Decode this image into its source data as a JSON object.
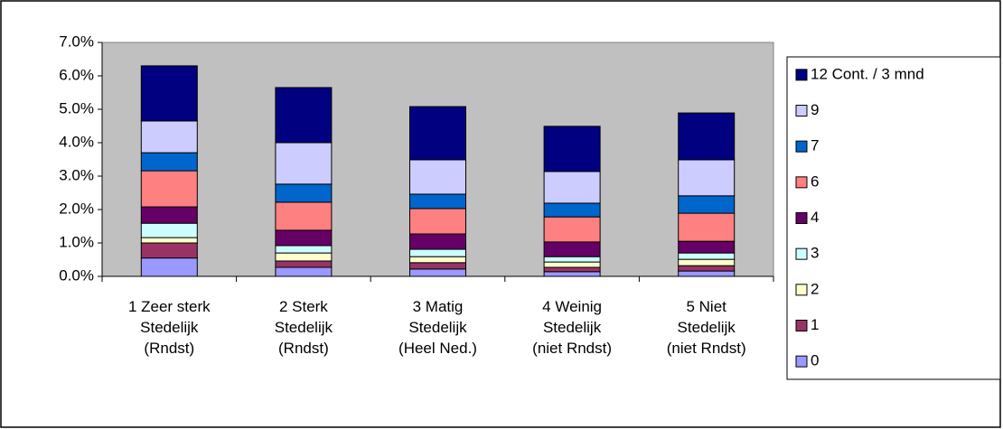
{
  "chart_data": {
    "type": "stacked_bar",
    "categories": [
      "1  Zeer sterk Stedelijk (Rndst)",
      "2  Sterk Stedelijk (Rndst)",
      "3  Matig Stedelijk (Heel Ned.)",
      "4  Weinig Stedelijk (niet Rndst)",
      "5  Niet Stedelijk (niet Rndst)"
    ],
    "series": [
      {
        "name": "0",
        "color": "#9999ff",
        "values": [
          0.55,
          0.27,
          0.22,
          0.14,
          0.16
        ]
      },
      {
        "name": "1",
        "color": "#993366",
        "values": [
          0.45,
          0.19,
          0.19,
          0.13,
          0.16
        ]
      },
      {
        "name": "2",
        "color": "#ffffcc",
        "values": [
          0.16,
          0.24,
          0.18,
          0.16,
          0.19
        ]
      },
      {
        "name": "3",
        "color": "#ccffff",
        "values": [
          0.43,
          0.22,
          0.22,
          0.16,
          0.19
        ]
      },
      {
        "name": "4",
        "color": "#660066",
        "values": [
          0.49,
          0.46,
          0.46,
          0.44,
          0.35
        ]
      },
      {
        "name": "6",
        "color": "#ff8080",
        "values": [
          1.08,
          0.84,
          0.76,
          0.75,
          0.84
        ]
      },
      {
        "name": "7",
        "color": "#0066cc",
        "values": [
          0.54,
          0.54,
          0.43,
          0.41,
          0.52
        ]
      },
      {
        "name": "9",
        "color": "#ccccff",
        "values": [
          0.95,
          1.24,
          1.03,
          0.95,
          1.08
        ]
      },
      {
        "name": "12 Cont. / 3 mnd",
        "color": "#000080",
        "values": [
          1.65,
          1.65,
          1.59,
          1.35,
          1.4
        ]
      }
    ],
    "ylim": [
      0,
      7
    ],
    "yticks": [
      {
        "value": 0,
        "label": "0.0%"
      },
      {
        "value": 1,
        "label": "1.0%"
      },
      {
        "value": 2,
        "label": "2.0%"
      },
      {
        "value": 3,
        "label": "3.0%"
      },
      {
        "value": 4,
        "label": "4.0%"
      },
      {
        "value": 5,
        "label": "5.0%"
      },
      {
        "value": 6,
        "label": "6.0%"
      },
      {
        "value": 7,
        "label": "7.0%"
      }
    ],
    "plot_background": "#c0c0c0",
    "legend": "right"
  }
}
